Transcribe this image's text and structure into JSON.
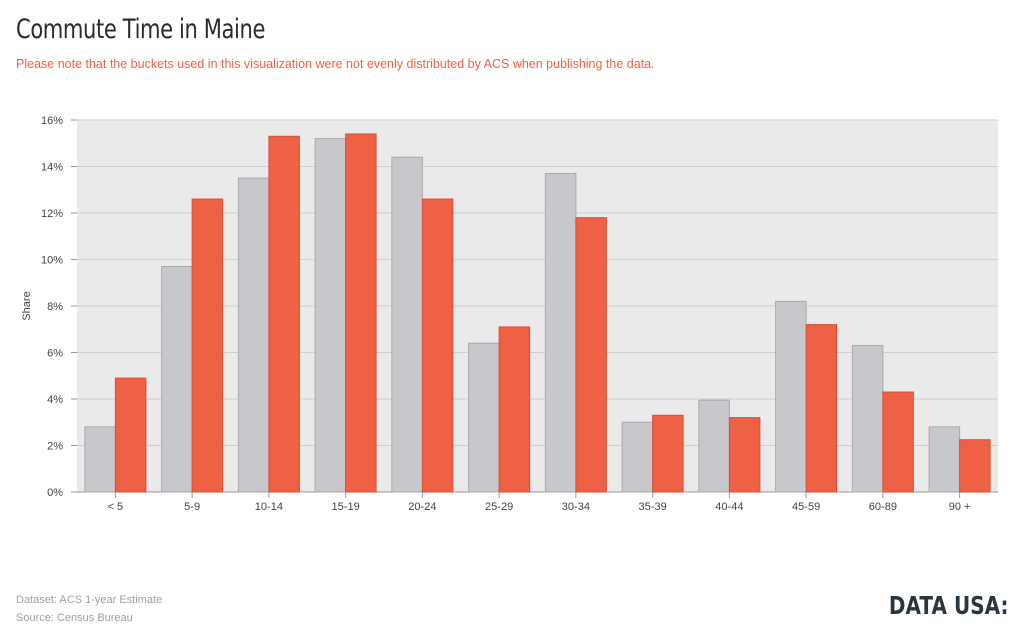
{
  "header": {
    "title": "Commute Time in Maine",
    "subtitle": "Please note that the buckets used in this visualization were not evenly distributed by ACS when publishing the data."
  },
  "footer": {
    "dataset": "Dataset: ACS 1-year Estimate",
    "source": "Source: Census Bureau",
    "logo": "DATA USA:"
  },
  "colors": {
    "series_gray": "#c8c8cc",
    "series_red": "#ee6145",
    "plot_background": "#eaeaea",
    "gridline": "#cfcfcf",
    "title": "#2b2b2b",
    "subtitle": "#ef6145"
  },
  "chart_data": {
    "type": "bar",
    "ylabel": "Share",
    "ylim": [
      0,
      16
    ],
    "yticks": [
      "0%",
      "2%",
      "4%",
      "6%",
      "8%",
      "10%",
      "12%",
      "14%",
      "16%"
    ],
    "grid": true,
    "categories": [
      "< 5",
      "5-9",
      "10-14",
      "15-19",
      "20-24",
      "25-29",
      "30-34",
      "35-39",
      "40-44",
      "45-59",
      "60-89",
      "90 +"
    ],
    "series": [
      {
        "values": [
          2.8,
          9.7,
          13.5,
          15.2,
          14.4,
          6.4,
          13.7,
          3.0,
          3.95,
          8.2,
          6.3,
          2.8
        ]
      },
      {
        "values": [
          4.9,
          12.6,
          15.3,
          15.4,
          12.6,
          7.1,
          11.8,
          3.3,
          3.2,
          7.2,
          4.3,
          2.25
        ]
      }
    ]
  }
}
